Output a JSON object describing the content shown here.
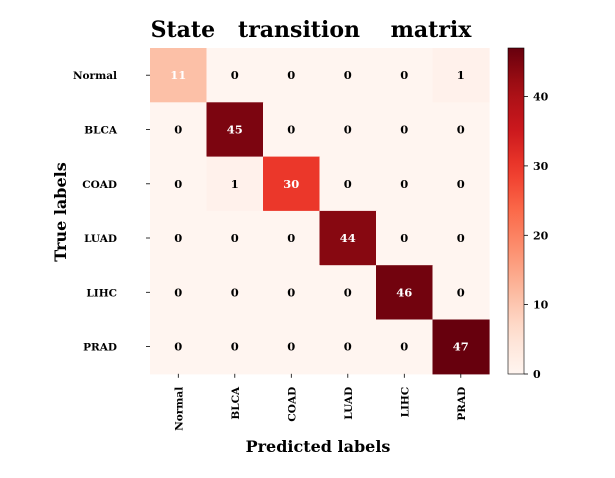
{
  "chart_data": {
    "type": "heatmap",
    "title": "State   transition    matrix",
    "xlabel": "Predicted labels",
    "ylabel": "True labels",
    "row_labels": [
      "Normal",
      "BLCA",
      "COAD",
      "LUAD",
      "LIHC",
      "PRAD"
    ],
    "col_labels": [
      "Normal",
      "BLCA",
      "COAD",
      "LUAD",
      "LIHC",
      "PRAD"
    ],
    "values": [
      [
        11,
        0,
        0,
        0,
        0,
        1
      ],
      [
        0,
        45,
        0,
        0,
        0,
        0
      ],
      [
        0,
        1,
        30,
        0,
        0,
        0
      ],
      [
        0,
        0,
        0,
        44,
        0,
        0
      ],
      [
        0,
        0,
        0,
        0,
        46,
        0
      ],
      [
        0,
        0,
        0,
        0,
        0,
        47
      ]
    ],
    "colorbar": {
      "range": [
        0,
        47
      ],
      "ticks": [
        0,
        10,
        20,
        30,
        40
      ],
      "colormap": "Reds"
    },
    "grid": false,
    "legend": "colorbar-right"
  }
}
